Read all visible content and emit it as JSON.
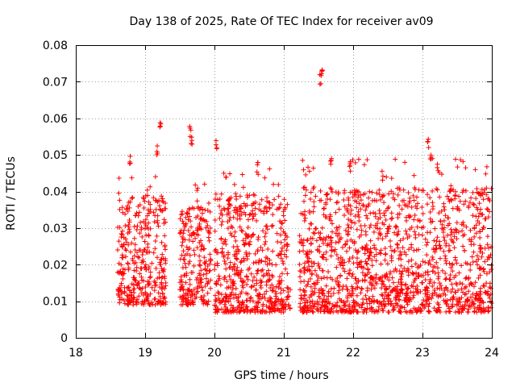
{
  "chart_data": {
    "type": "scatter",
    "title": "Day 138 of 2025, Rate Of TEC Index for receiver av09",
    "xlabel": "GPS time / hours",
    "ylabel": "ROTI / TECUs",
    "xlim": [
      18,
      24
    ],
    "ylim": [
      0,
      0.08
    ],
    "x_ticks": [
      "18",
      "19",
      "20",
      "21",
      "22",
      "23",
      "24"
    ],
    "y_ticks": [
      "0",
      "0.01",
      "0.02",
      "0.03",
      "0.04",
      "0.05",
      "0.06",
      "0.07",
      "0.08"
    ],
    "grid": true,
    "marker": "plus",
    "color": "#ff0000",
    "segments": [
      {
        "x_start": 18.6,
        "x_end": 19.3,
        "y_base": 0.005,
        "y_typical_max": 0.035
      },
      {
        "x_start": 19.5,
        "x_end": 19.95,
        "y_base": 0.005,
        "y_typical_max": 0.032
      },
      {
        "x_start": 20.0,
        "x_end": 21.1,
        "y_base": 0.003,
        "y_typical_max": 0.035
      },
      {
        "x_start": 21.22,
        "x_end": 24.0,
        "y_base": 0.003,
        "y_typical_max": 0.037
      }
    ],
    "peaks": [
      {
        "x": 18.78,
        "y": 0.05
      },
      {
        "x": 19.22,
        "y": 0.059
      },
      {
        "x": 19.17,
        "y": 0.053
      },
      {
        "x": 19.65,
        "y": 0.058
      },
      {
        "x": 19.67,
        "y": 0.055
      },
      {
        "x": 20.03,
        "y": 0.054
      },
      {
        "x": 20.62,
        "y": 0.048
      },
      {
        "x": 21.55,
        "y": 0.075
      },
      {
        "x": 21.53,
        "y": 0.072
      },
      {
        "x": 21.68,
        "y": 0.05
      },
      {
        "x": 21.95,
        "y": 0.048
      },
      {
        "x": 22.42,
        "y": 0.046
      },
      {
        "x": 23.08,
        "y": 0.055
      },
      {
        "x": 23.12,
        "y": 0.05
      },
      {
        "x": 23.4,
        "y": 0.043
      }
    ]
  }
}
